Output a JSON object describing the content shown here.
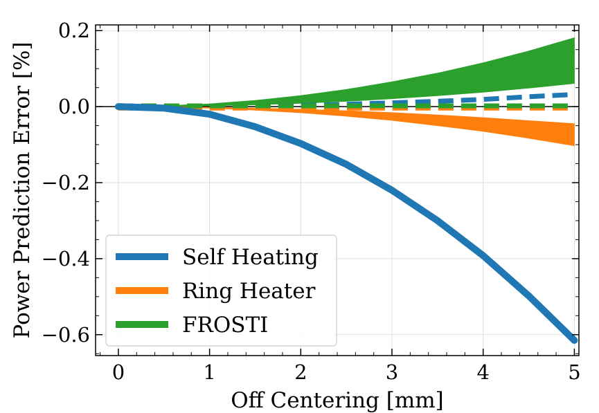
{
  "chart_data": {
    "type": "line",
    "xlabel": "Off Centering [mm]",
    "ylabel": "Power Prediction Error [%]",
    "xlim": [
      -0.25,
      5.05
    ],
    "ylim": [
      -0.655,
      0.215
    ],
    "xticks": [
      0,
      1,
      2,
      3,
      4,
      5
    ],
    "xtick_labels": [
      "0",
      "1",
      "2",
      "3",
      "4",
      "5"
    ],
    "yticks": [
      0.2,
      0.0,
      -0.2,
      -0.4,
      -0.6
    ],
    "ytick_labels": [
      "0.2",
      "0.0",
      "−0.2",
      "−0.4",
      "−0.6"
    ],
    "grid": true,
    "legend_position": "lower-left",
    "zero_line": true,
    "series": [
      {
        "name": "Self Heating",
        "color": "#1f77b4",
        "x": [
          0,
          0.5,
          1,
          1.5,
          2,
          2.5,
          3,
          3.5,
          4,
          4.5,
          5
        ],
        "values": [
          0.0,
          -0.004,
          -0.02,
          -0.053,
          -0.097,
          -0.152,
          -0.22,
          -0.3,
          -0.392,
          -0.498,
          -0.615
        ],
        "dashed_x": [
          0,
          0.5,
          1,
          1.5,
          2,
          2.5,
          3,
          3.5,
          4,
          4.5,
          5
        ],
        "dashed_values": [
          0.0,
          0.0,
          0.0005,
          0.0015,
          0.003,
          0.006,
          0.01,
          0.014,
          0.019,
          0.026,
          0.032
        ]
      },
      {
        "name": "Ring Heater",
        "color": "#ff7f0e",
        "x": [
          0,
          0.5,
          1,
          1.5,
          2,
          2.5,
          3,
          3.5,
          4,
          4.5,
          5
        ],
        "band_upper": [
          0.0,
          -0.0005,
          -0.002,
          -0.004,
          -0.007,
          -0.011,
          -0.016,
          -0.022,
          -0.029,
          -0.037,
          -0.045
        ],
        "band_lower": [
          0.0,
          -0.001,
          -0.004,
          -0.009,
          -0.016,
          -0.025,
          -0.036,
          -0.05,
          -0.065,
          -0.083,
          -0.103
        ],
        "dashed_x": [
          0,
          0.5,
          1,
          1.5,
          2,
          2.5,
          3,
          3.5,
          4,
          4.5,
          5
        ],
        "dashed_values": [
          -0.004,
          -0.004,
          -0.004,
          -0.004,
          -0.004,
          -0.004,
          -0.004,
          -0.004,
          -0.004,
          -0.004,
          -0.004
        ]
      },
      {
        "name": "FROSTI",
        "color": "#2ca02c",
        "x": [
          0,
          0.5,
          1,
          1.5,
          2,
          2.5,
          3,
          3.5,
          4,
          4.5,
          5
        ],
        "band_upper": [
          0.0,
          0.002,
          0.007,
          0.016,
          0.029,
          0.045,
          0.065,
          0.088,
          0.115,
          0.146,
          0.181
        ],
        "band_lower": [
          0.0,
          0.0005,
          0.002,
          0.005,
          0.009,
          0.014,
          0.021,
          0.029,
          0.038,
          0.049,
          0.061
        ],
        "dashed_x": [
          0,
          0.5,
          1,
          1.5,
          2,
          2.5,
          3,
          3.5,
          4,
          4.5,
          5
        ],
        "dashed_values": [
          0.002,
          0.002,
          0.002,
          0.002,
          0.002,
          0.002,
          0.002,
          0.002,
          0.002,
          0.002,
          0.002
        ]
      }
    ]
  }
}
